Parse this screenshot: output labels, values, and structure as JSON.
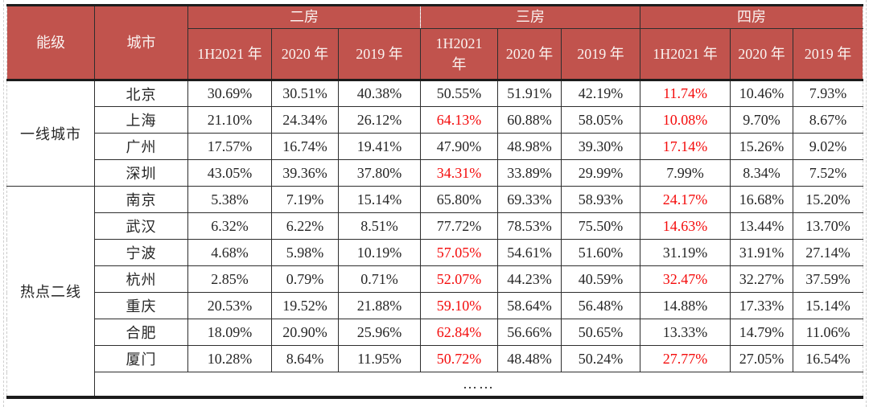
{
  "chart_data": {
    "type": "table",
    "corner": {
      "tier": "能级",
      "city": "城市"
    },
    "groups": [
      {
        "label": "二房",
        "sub": [
          "1H2021 年",
          "2020 年",
          "2019 年"
        ]
      },
      {
        "label": "三房",
        "sub": [
          "1H2021 年",
          "2020 年",
          "2019 年"
        ]
      },
      {
        "label": "四房",
        "sub": [
          "1H2021 年",
          "2020 年",
          "2019 年"
        ]
      }
    ],
    "tiers": [
      {
        "label": "一线城市",
        "rows": [
          {
            "city": "北京",
            "values": [
              "30.69%",
              "30.51%",
              "40.38%",
              "50.55%",
              "51.91%",
              "42.19%",
              "11.74%",
              "10.46%",
              "7.93%"
            ],
            "red": [
              6
            ]
          },
          {
            "city": "上海",
            "values": [
              "21.10%",
              "24.34%",
              "26.12%",
              "64.13%",
              "60.88%",
              "58.05%",
              "10.08%",
              "9.70%",
              "8.67%"
            ],
            "red": [
              3,
              6
            ]
          },
          {
            "city": "广州",
            "values": [
              "17.57%",
              "16.74%",
              "19.41%",
              "47.90%",
              "48.98%",
              "39.30%",
              "17.14%",
              "15.26%",
              "9.02%"
            ],
            "red": [
              6
            ]
          },
          {
            "city": "深圳",
            "values": [
              "43.05%",
              "39.36%",
              "37.80%",
              "34.31%",
              "33.89%",
              "29.99%",
              "7.99%",
              "8.34%",
              "7.52%"
            ],
            "red": [
              3
            ]
          }
        ]
      },
      {
        "label": "热点二线",
        "rows": [
          {
            "city": "南京",
            "values": [
              "5.38%",
              "7.19%",
              "15.14%",
              "65.80%",
              "69.33%",
              "58.93%",
              "24.17%",
              "16.68%",
              "15.20%"
            ],
            "red": [
              6
            ]
          },
          {
            "city": "武汉",
            "values": [
              "6.32%",
              "6.22%",
              "8.51%",
              "77.72%",
              "78.53%",
              "75.50%",
              "14.63%",
              "13.44%",
              "13.70%"
            ],
            "red": [
              6
            ]
          },
          {
            "city": "宁波",
            "values": [
              "4.68%",
              "5.98%",
              "10.19%",
              "57.05%",
              "54.61%",
              "51.60%",
              "31.19%",
              "31.91%",
              "27.14%"
            ],
            "red": [
              3
            ]
          },
          {
            "city": "杭州",
            "values": [
              "2.85%",
              "0.79%",
              "0.71%",
              "52.07%",
              "44.23%",
              "40.59%",
              "32.47%",
              "32.27%",
              "37.59%"
            ],
            "red": [
              3,
              6
            ]
          },
          {
            "city": "重庆",
            "values": [
              "20.53%",
              "19.52%",
              "21.88%",
              "59.10%",
              "58.64%",
              "56.48%",
              "14.88%",
              "17.33%",
              "15.14%"
            ],
            "red": [
              3
            ]
          },
          {
            "city": "合肥",
            "values": [
              "18.09%",
              "20.90%",
              "25.96%",
              "62.84%",
              "56.66%",
              "50.65%",
              "13.33%",
              "14.79%",
              "11.06%"
            ],
            "red": [
              3
            ]
          },
          {
            "city": "厦门",
            "values": [
              "10.28%",
              "8.64%",
              "11.95%",
              "50.72%",
              "48.48%",
              "50.24%",
              "27.77%",
              "27.05%",
              "16.54%"
            ],
            "red": [
              3,
              6
            ]
          }
        ]
      }
    ],
    "ellipsis": "……"
  },
  "colors": {
    "header_bg": "#c1534d",
    "header_text": "#faf3f1",
    "highlight_red": "#f40b0b",
    "body_text": "#262626",
    "grid_border": "#2e2e2e"
  }
}
